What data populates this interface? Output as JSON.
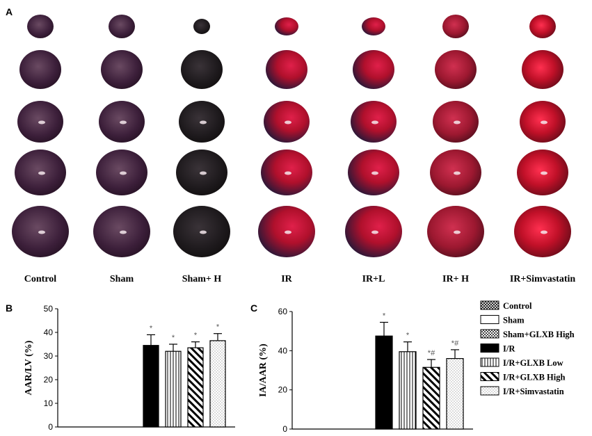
{
  "panel_a": {
    "letter": "A",
    "groups": [
      "Control",
      "Sham",
      "Sham+ H",
      "IR",
      "IR+L",
      "IR+ H",
      "IR+Simvastatin"
    ]
  },
  "colors": {
    "stain_dark": "#3c1f3a",
    "stain_red": "#b0102c",
    "stain_bright": "#e0204a",
    "ink": "#000000"
  },
  "chart_data": [
    {
      "panel": "B",
      "type": "bar",
      "ylabel": "AAR/LV (%)",
      "ylim": [
        0,
        50
      ],
      "yticks": [
        0,
        10,
        20,
        30,
        40,
        50
      ],
      "categories": [
        "Control",
        "Sham",
        "Sham+GLXB High",
        "I/R",
        "I/R+GLXB Low",
        "I/R+GLXB High",
        "I/R+Simvastatin"
      ],
      "values": [
        0,
        0,
        0,
        34.5,
        32,
        33.5,
        36.5
      ],
      "errors": [
        0,
        0,
        0,
        4.5,
        3,
        2.5,
        3
      ],
      "significance": [
        "",
        "",
        "",
        "*",
        "*",
        "*",
        "*"
      ]
    },
    {
      "panel": "C",
      "type": "bar",
      "ylabel": "IA/AAR (%)",
      "ylim": [
        0,
        60
      ],
      "yticks": [
        0,
        20,
        40,
        60
      ],
      "categories": [
        "Control",
        "Sham",
        "Sham+GLXB High",
        "I/R",
        "I/R+GLXB Low",
        "I/R+GLXB High",
        "I/R+Simvastatin"
      ],
      "values": [
        0,
        0,
        0,
        47.5,
        39.5,
        31.5,
        36
      ],
      "errors": [
        0,
        0,
        0,
        7,
        5,
        4,
        4.5
      ],
      "significance": [
        "",
        "",
        "",
        "*",
        "*",
        "*#",
        "*#"
      ]
    }
  ],
  "legend": {
    "items": [
      {
        "label": "Control",
        "pattern": "crosshatch"
      },
      {
        "label": "Sham",
        "pattern": "empty"
      },
      {
        "label": "Sham+GLXB High",
        "pattern": "checker"
      },
      {
        "label": "I/R",
        "pattern": "solid"
      },
      {
        "label": "I/R+GLXB Low",
        "pattern": "vertical"
      },
      {
        "label": "I/R+GLXB High",
        "pattern": "diagonal"
      },
      {
        "label": "I/R+Simvastatin",
        "pattern": "dotted"
      }
    ]
  }
}
